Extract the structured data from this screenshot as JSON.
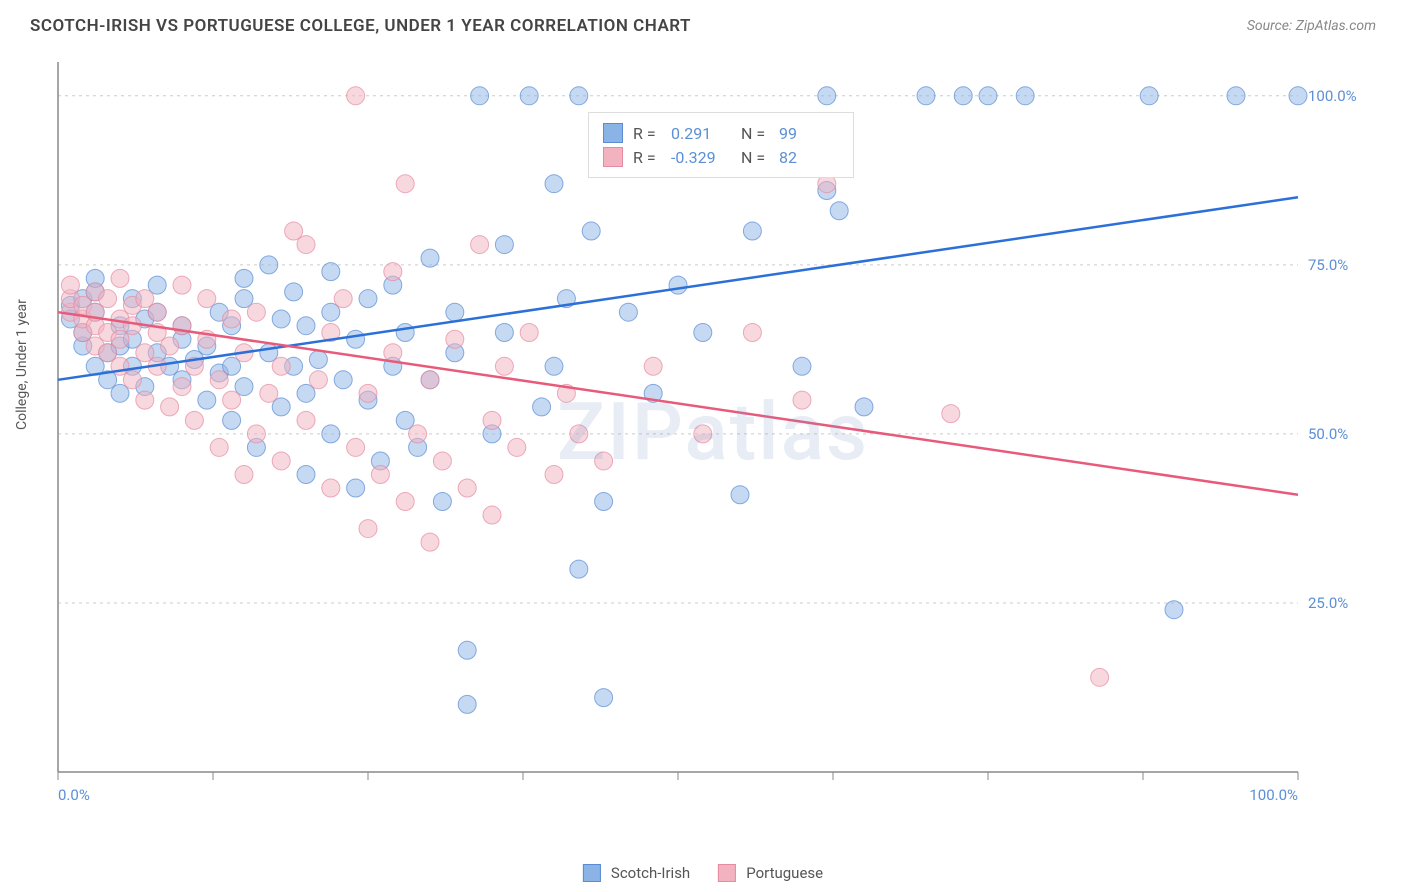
{
  "header": {
    "title": "SCOTCH-IRISH VS PORTUGUESE COLLEGE, UNDER 1 YEAR CORRELATION CHART",
    "source": "Source: ZipAtlas.com"
  },
  "y_axis_label": "College, Under 1 year",
  "watermark": "ZIPatlas",
  "chart": {
    "type": "scatter",
    "xlim": [
      0,
      100
    ],
    "ylim": [
      0,
      105
    ],
    "x_ticks": [
      0,
      12.5,
      25,
      37.5,
      50,
      62.5,
      75,
      87.5,
      100
    ],
    "x_tick_labels": {
      "0": "0.0%",
      "100": "100.0%"
    },
    "y_gridlines": [
      25,
      50,
      75,
      100
    ],
    "y_tick_labels": {
      "25": "25.0%",
      "50": "50.0%",
      "75": "75.0%",
      "100": "100.0%"
    },
    "background_color": "#ffffff",
    "grid_color": "#cccccc",
    "axis_color": "#888888",
    "marker_radius": 9,
    "marker_opacity": 0.5,
    "series": [
      {
        "name": "Scotch-Irish",
        "color": "#8bb3e6",
        "stroke": "#5a8bd4",
        "line_color": "#2b6fd8",
        "line_width": 2.5,
        "trend": {
          "y_at_x0": 58,
          "y_at_x100": 85
        },
        "R": "0.291",
        "N": "99",
        "points": [
          [
            1,
            67
          ],
          [
            1,
            69
          ],
          [
            2,
            63
          ],
          [
            2,
            65
          ],
          [
            2,
            70
          ],
          [
            3,
            60
          ],
          [
            3,
            68
          ],
          [
            3,
            71
          ],
          [
            3,
            73
          ],
          [
            4,
            58
          ],
          [
            4,
            62
          ],
          [
            5,
            56
          ],
          [
            5,
            63
          ],
          [
            5,
            66
          ],
          [
            6,
            60
          ],
          [
            6,
            64
          ],
          [
            6,
            70
          ],
          [
            7,
            57
          ],
          [
            7,
            67
          ],
          [
            8,
            62
          ],
          [
            8,
            68
          ],
          [
            8,
            72
          ],
          [
            9,
            60
          ],
          [
            10,
            58
          ],
          [
            10,
            64
          ],
          [
            10,
            66
          ],
          [
            11,
            61
          ],
          [
            12,
            55
          ],
          [
            12,
            63
          ],
          [
            13,
            59
          ],
          [
            13,
            68
          ],
          [
            14,
            52
          ],
          [
            14,
            60
          ],
          [
            14,
            66
          ],
          [
            15,
            57
          ],
          [
            15,
            70
          ],
          [
            15,
            73
          ],
          [
            16,
            48
          ],
          [
            17,
            62
          ],
          [
            17,
            75
          ],
          [
            18,
            54
          ],
          [
            18,
            67
          ],
          [
            19,
            60
          ],
          [
            19,
            71
          ],
          [
            20,
            44
          ],
          [
            20,
            56
          ],
          [
            20,
            66
          ],
          [
            21,
            61
          ],
          [
            22,
            50
          ],
          [
            22,
            68
          ],
          [
            22,
            74
          ],
          [
            23,
            58
          ],
          [
            24,
            42
          ],
          [
            24,
            64
          ],
          [
            25,
            55
          ],
          [
            25,
            70
          ],
          [
            26,
            46
          ],
          [
            27,
            60
          ],
          [
            27,
            72
          ],
          [
            28,
            52
          ],
          [
            28,
            65
          ],
          [
            29,
            48
          ],
          [
            30,
            58
          ],
          [
            30,
            76
          ],
          [
            31,
            40
          ],
          [
            32,
            62
          ],
          [
            32,
            68
          ],
          [
            33,
            10
          ],
          [
            33,
            18
          ],
          [
            34,
            100
          ],
          [
            35,
            50
          ],
          [
            36,
            65
          ],
          [
            36,
            78
          ],
          [
            38,
            100
          ],
          [
            39,
            54
          ],
          [
            40,
            60
          ],
          [
            40,
            87
          ],
          [
            41,
            70
          ],
          [
            42,
            30
          ],
          [
            42,
            100
          ],
          [
            43,
            80
          ],
          [
            44,
            11
          ],
          [
            44,
            40
          ],
          [
            46,
            68
          ],
          [
            48,
            56
          ],
          [
            50,
            72
          ],
          [
            52,
            65
          ],
          [
            55,
            41
          ],
          [
            56,
            80
          ],
          [
            58,
            92
          ],
          [
            60,
            60
          ],
          [
            62,
            86
          ],
          [
            62,
            100
          ],
          [
            63,
            83
          ],
          [
            65,
            54
          ],
          [
            70,
            100
          ],
          [
            73,
            100
          ],
          [
            75,
            100
          ],
          [
            78,
            100
          ],
          [
            88,
            100
          ],
          [
            90,
            24
          ],
          [
            95,
            100
          ],
          [
            100,
            100
          ]
        ]
      },
      {
        "name": "Portuguese",
        "color": "#f2b2c0",
        "stroke": "#e68aa0",
        "line_color": "#e85a7a",
        "line_width": 2.5,
        "trend": {
          "y_at_x0": 68,
          "y_at_x100": 41
        },
        "R": "-0.329",
        "N": "82",
        "points": [
          [
            1,
            68
          ],
          [
            1,
            70
          ],
          [
            1,
            72
          ],
          [
            2,
            65
          ],
          [
            2,
            67
          ],
          [
            2,
            69
          ],
          [
            3,
            63
          ],
          [
            3,
            66
          ],
          [
            3,
            71
          ],
          [
            3,
            68
          ],
          [
            4,
            62
          ],
          [
            4,
            65
          ],
          [
            4,
            70
          ],
          [
            5,
            60
          ],
          [
            5,
            64
          ],
          [
            5,
            67
          ],
          [
            5,
            73
          ],
          [
            6,
            58
          ],
          [
            6,
            66
          ],
          [
            6,
            69
          ],
          [
            7,
            55
          ],
          [
            7,
            62
          ],
          [
            7,
            70
          ],
          [
            8,
            60
          ],
          [
            8,
            65
          ],
          [
            8,
            68
          ],
          [
            9,
            54
          ],
          [
            9,
            63
          ],
          [
            10,
            57
          ],
          [
            10,
            66
          ],
          [
            10,
            72
          ],
          [
            11,
            52
          ],
          [
            11,
            60
          ],
          [
            12,
            64
          ],
          [
            12,
            70
          ],
          [
            13,
            48
          ],
          [
            13,
            58
          ],
          [
            14,
            55
          ],
          [
            14,
            67
          ],
          [
            15,
            44
          ],
          [
            15,
            62
          ],
          [
            16,
            50
          ],
          [
            16,
            68
          ],
          [
            17,
            56
          ],
          [
            18,
            46
          ],
          [
            18,
            60
          ],
          [
            19,
            80
          ],
          [
            20,
            52
          ],
          [
            20,
            78
          ],
          [
            21,
            58
          ],
          [
            22,
            42
          ],
          [
            22,
            65
          ],
          [
            23,
            70
          ],
          [
            24,
            48
          ],
          [
            24,
            100
          ],
          [
            25,
            36
          ],
          [
            25,
            56
          ],
          [
            26,
            44
          ],
          [
            27,
            62
          ],
          [
            27,
            74
          ],
          [
            28,
            40
          ],
          [
            28,
            87
          ],
          [
            29,
            50
          ],
          [
            30,
            34
          ],
          [
            30,
            58
          ],
          [
            31,
            46
          ],
          [
            32,
            64
          ],
          [
            33,
            42
          ],
          [
            34,
            78
          ],
          [
            35,
            38
          ],
          [
            35,
            52
          ],
          [
            36,
            60
          ],
          [
            37,
            48
          ],
          [
            38,
            65
          ],
          [
            40,
            44
          ],
          [
            41,
            56
          ],
          [
            42,
            50
          ],
          [
            44,
            46
          ],
          [
            48,
            60
          ],
          [
            52,
            50
          ],
          [
            56,
            65
          ],
          [
            60,
            55
          ],
          [
            62,
            87
          ],
          [
            72,
            53
          ],
          [
            84,
            14
          ]
        ]
      }
    ]
  },
  "legend_labels": {
    "R": "R =",
    "N": "N ="
  }
}
